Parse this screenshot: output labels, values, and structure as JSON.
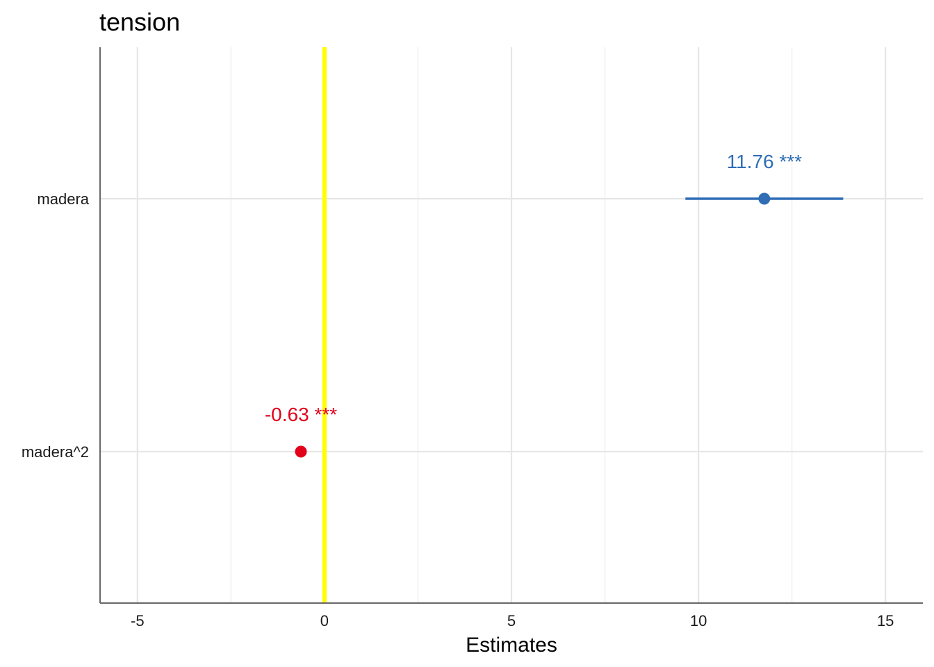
{
  "chart_data": {
    "type": "scatter",
    "title": "tension",
    "xlabel": "Estimates",
    "ylabel": "",
    "xlim": [
      -6,
      16
    ],
    "xticks": [
      -5,
      0,
      5,
      10,
      15
    ],
    "x_minor_ticks": [
      -2.5,
      2.5,
      7.5,
      12.5
    ],
    "reference_line": {
      "x": 0,
      "color": "#ffff00"
    },
    "grid": true,
    "categories": [
      "madera",
      "madera^2"
    ],
    "points": [
      {
        "term": "madera",
        "estimate": 11.76,
        "ci_low": 9.65,
        "ci_high": 13.87,
        "label": "11.76 ***",
        "color": "#2f6db5"
      },
      {
        "term": "madera^2",
        "estimate": -0.63,
        "ci_low": -0.74,
        "ci_high": -0.52,
        "label": "-0.63 ***",
        "color": "#e3001b"
      }
    ]
  }
}
